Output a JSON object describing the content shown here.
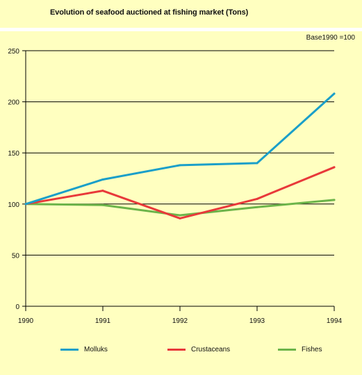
{
  "header": {
    "title": "Evolution of seafood auctioned at fishing market (Tons)",
    "note": "Base1990 =100"
  },
  "chart_data": {
    "type": "line",
    "title": "Evolution of seafood auctioned at fishing market (Tons)",
    "subtitle": "Base1990 =100",
    "xlabel": "",
    "ylabel": "",
    "x": [
      "1990",
      "1991",
      "1992",
      "1993",
      "1994"
    ],
    "ylim": [
      0,
      250
    ],
    "yticks": [
      0,
      50,
      100,
      150,
      200,
      250
    ],
    "grid": true,
    "legend_position": "bottom",
    "series": [
      {
        "name": "Molluks",
        "color": "#1a9fc9",
        "values": [
          100,
          124,
          138,
          140,
          208
        ]
      },
      {
        "name": "Crustaceans",
        "color": "#e8393a",
        "values": [
          100,
          113,
          86,
          105,
          136
        ]
      },
      {
        "name": "Fishes",
        "color": "#6cb44a",
        "values": [
          100,
          99,
          89,
          97,
          104
        ]
      }
    ]
  }
}
